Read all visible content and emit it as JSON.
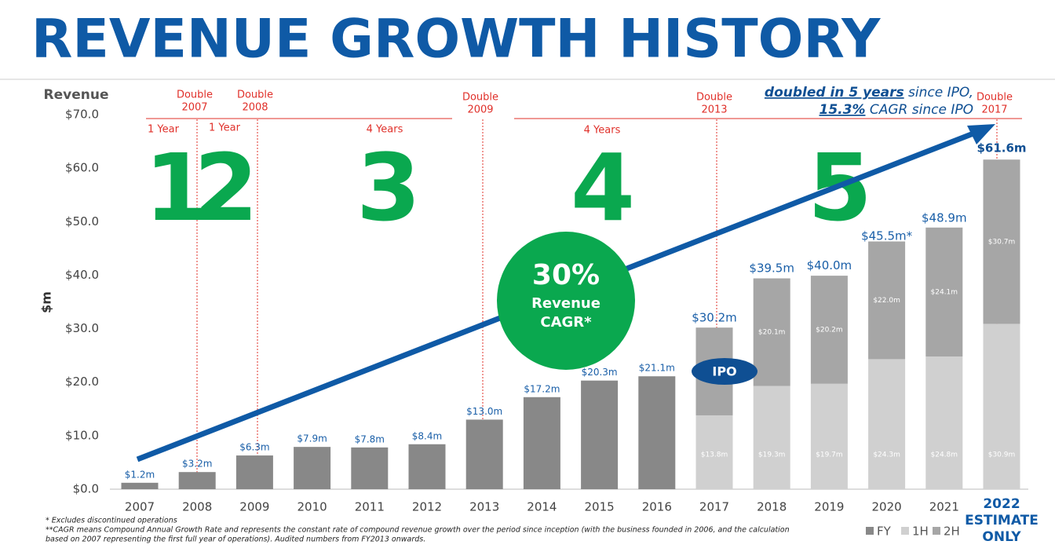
{
  "chart_data": {
    "type": "stacked_bar",
    "title": "REVENUE GROWTH HISTORY",
    "y_title": "Revenue",
    "y_unit_label": "$m",
    "categories": [
      "2007",
      "2008",
      "2009",
      "2010",
      "2011",
      "2012",
      "2013",
      "2014",
      "2015",
      "2016",
      "2017",
      "2018",
      "2019",
      "2020",
      "2021",
      "2022"
    ],
    "last_category_note": [
      "ESTIMATE",
      "ONLY"
    ],
    "ylim": [
      0,
      70
    ],
    "yticks": [
      {
        "value": 0,
        "label": "$0.0"
      },
      {
        "value": 10,
        "label": "$10.0"
      },
      {
        "value": 20,
        "label": "$20.0"
      },
      {
        "value": 30,
        "label": "$30.0"
      },
      {
        "value": 40,
        "label": "$40.0"
      },
      {
        "value": 50,
        "label": "$50.0"
      },
      {
        "value": 60,
        "label": "$60.0"
      },
      {
        "value": 70,
        "label": "$70.0"
      }
    ],
    "series": [
      {
        "name": "FY",
        "color": "#888888",
        "values": [
          1.2,
          3.2,
          6.3,
          7.9,
          7.8,
          8.4,
          13.0,
          17.2,
          20.3,
          21.1,
          null,
          null,
          null,
          null,
          null,
          null
        ],
        "value_labels": [
          "$1.2m",
          "$3.2m",
          "$6.3m",
          "$7.9m",
          "$7.8m",
          "$8.4m",
          "$13.0m",
          "$17.2m",
          "$20.3m",
          "$21.1m",
          null,
          null,
          null,
          null,
          null,
          null
        ]
      },
      {
        "name": "1H",
        "color": "#d0d0d0",
        "values": [
          null,
          null,
          null,
          null,
          null,
          null,
          null,
          null,
          null,
          null,
          13.8,
          19.3,
          19.7,
          24.3,
          24.8,
          30.9
        ],
        "value_labels": [
          null,
          null,
          null,
          null,
          null,
          null,
          null,
          null,
          null,
          null,
          "$13.8m",
          "$19.3m",
          "$19.7m",
          "$24.3m",
          "$24.8m",
          "$30.9m"
        ]
      },
      {
        "name": "2H",
        "color": "#a6a6a6",
        "values": [
          null,
          null,
          null,
          null,
          null,
          null,
          null,
          null,
          null,
          null,
          16.4,
          20.1,
          20.2,
          22.0,
          24.1,
          30.7
        ],
        "value_labels": [
          null,
          null,
          null,
          null,
          null,
          null,
          null,
          null,
          null,
          null,
          null,
          "$20.1m",
          "$20.2m",
          "$22.0m",
          "$24.1m",
          "$30.7m"
        ]
      }
    ],
    "totals": {
      "values": [
        null,
        null,
        null,
        null,
        null,
        null,
        null,
        null,
        null,
        null,
        30.2,
        39.5,
        40.0,
        45.5,
        48.9,
        61.6
      ],
      "value_labels": [
        null,
        null,
        null,
        null,
        null,
        null,
        null,
        null,
        null,
        null,
        "$30.2m",
        "$39.5m",
        "$40.0m",
        "$45.5m*",
        "$48.9m",
        "$61.6m"
      ]
    },
    "doublings": [
      {
        "line1": "Double",
        "line2": "2007"
      },
      {
        "line1": "Double",
        "line2": "2008"
      },
      {
        "line1": "Double",
        "line2": "2009"
      },
      {
        "line1": "Double",
        "line2": "2013"
      },
      {
        "line1": "Double",
        "line2": "2017"
      }
    ],
    "periods": [
      "1 Year",
      "1 Year",
      "4 Years",
      "4 Years"
    ],
    "phase_numbers": [
      "1",
      "2",
      "3",
      "4",
      "5"
    ],
    "cagr_badge": {
      "value": "30%",
      "line1": "Revenue",
      "line2": "CAGR*"
    },
    "ipo_label": "IPO",
    "callout": {
      "emph1": "doubled in 5 years",
      "text1": " since IPO,",
      "emph2": "15.3%",
      "text2": " CAGR since IPO"
    },
    "footnotes": [
      "* Excludes discontinued operations",
      "**CAGR means Compound Annual Growth Rate and represents the constant rate of compound revenue growth over the period since inception (with the business founded in 2006, and the calculation",
      "based on 2007 representing the first full year of operations).   Audited numbers from FY2013 onwards."
    ]
  }
}
